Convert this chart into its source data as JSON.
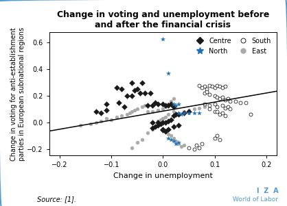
{
  "title": "Change in voting and unemployment before\nand after the financial crisis",
  "xlabel": "Change in unemployment",
  "ylabel": "Change in voting for anti-establishment\nparties in European subnational regions",
  "xlim": [
    -0.22,
    0.22
  ],
  "ylim": [
    -0.25,
    0.68
  ],
  "xticks": [
    -0.2,
    -0.1,
    0.0,
    0.1,
    0.2
  ],
  "yticks": [
    -0.2,
    0.0,
    0.2,
    0.4,
    0.6
  ],
  "source_text": "Source: [1].",
  "iza_text": "I  Z  A",
  "wol_text": "World of Labor",
  "centre_color": "#1a1a1a",
  "north_color": "#1f6eb5",
  "east_color": "#aaaaaa",
  "border_color": "#5599cc",
  "trend_line": [
    -0.22,
    -0.065,
    0.22,
    0.235
  ],
  "centre_points": [
    [
      -0.13,
      0.08
    ],
    [
      -0.12,
      0.07
    ],
    [
      -0.11,
      0.09
    ],
    [
      -0.11,
      0.14
    ],
    [
      -0.09,
      0.26
    ],
    [
      -0.08,
      0.25
    ],
    [
      -0.085,
      0.15
    ],
    [
      -0.075,
      0.12
    ],
    [
      -0.07,
      0.2
    ],
    [
      -0.06,
      0.2
    ],
    [
      -0.055,
      0.24
    ],
    [
      -0.06,
      0.3
    ],
    [
      -0.05,
      0.25
    ],
    [
      -0.045,
      0.22
    ],
    [
      -0.04,
      0.3
    ],
    [
      -0.035,
      0.22
    ],
    [
      -0.03,
      0.13
    ],
    [
      -0.025,
      0.22
    ],
    [
      -0.02,
      0.13
    ],
    [
      -0.015,
      0.15
    ],
    [
      -0.01,
      0.14
    ],
    [
      0.0,
      0.14
    ],
    [
      0.005,
      0.13
    ],
    [
      0.01,
      0.13
    ],
    [
      0.015,
      0.14
    ],
    [
      0.02,
      0.12
    ],
    [
      0.025,
      0.06
    ],
    [
      0.02,
      0.05
    ],
    [
      0.015,
      0.02
    ],
    [
      0.01,
      0.01
    ],
    [
      0.005,
      0.0
    ],
    [
      0.0,
      0.0
    ],
    [
      -0.005,
      -0.01
    ],
    [
      -0.01,
      -0.02
    ],
    [
      -0.015,
      -0.03
    ],
    [
      -0.02,
      -0.04
    ],
    [
      -0.02,
      0.0
    ],
    [
      -0.01,
      0.0
    ],
    [
      0.0,
      -0.05
    ],
    [
      0.0,
      -0.06
    ],
    [
      0.005,
      -0.07
    ],
    [
      0.01,
      -0.05
    ],
    [
      0.02,
      -0.03
    ],
    [
      0.03,
      -0.02
    ],
    [
      0.03,
      0.06
    ],
    [
      0.04,
      0.07
    ],
    [
      0.05,
      0.08
    ]
  ],
  "north_points": [
    [
      0.0,
      0.63
    ],
    [
      0.01,
      0.37
    ],
    [
      0.02,
      0.14
    ],
    [
      0.025,
      0.13
    ],
    [
      0.03,
      0.14
    ],
    [
      0.03,
      0.07
    ],
    [
      0.035,
      0.06
    ],
    [
      0.04,
      0.07
    ],
    [
      0.05,
      0.07
    ],
    [
      0.06,
      0.07
    ],
    [
      0.07,
      0.07
    ],
    [
      0.01,
      -0.12
    ],
    [
      0.015,
      -0.13
    ],
    [
      0.02,
      -0.14
    ],
    [
      0.025,
      -0.16
    ],
    [
      0.03,
      -0.15
    ]
  ],
  "south_points": [
    [
      0.07,
      0.28
    ],
    [
      0.08,
      0.27
    ],
    [
      0.085,
      0.25
    ],
    [
      0.09,
      0.28
    ],
    [
      0.095,
      0.27
    ],
    [
      0.1,
      0.26
    ],
    [
      0.105,
      0.28
    ],
    [
      0.11,
      0.27
    ],
    [
      0.115,
      0.26
    ],
    [
      0.12,
      0.27
    ],
    [
      0.075,
      0.26
    ],
    [
      0.08,
      0.22
    ],
    [
      0.085,
      0.23
    ],
    [
      0.09,
      0.21
    ],
    [
      0.1,
      0.2
    ],
    [
      0.105,
      0.19
    ],
    [
      0.11,
      0.18
    ],
    [
      0.115,
      0.19
    ],
    [
      0.12,
      0.17
    ],
    [
      0.125,
      0.18
    ],
    [
      0.13,
      0.16
    ],
    [
      0.14,
      0.16
    ],
    [
      0.15,
      0.15
    ],
    [
      0.16,
      0.15
    ],
    [
      0.17,
      0.06
    ],
    [
      0.08,
      0.14
    ],
    [
      0.09,
      0.13
    ],
    [
      0.1,
      0.14
    ],
    [
      0.105,
      0.12
    ],
    [
      0.115,
      0.13
    ],
    [
      0.12,
      0.11
    ],
    [
      0.125,
      0.12
    ],
    [
      0.13,
      0.1
    ],
    [
      0.09,
      0.1
    ],
    [
      0.1,
      0.08
    ],
    [
      0.105,
      0.08
    ],
    [
      0.11,
      0.06
    ],
    [
      0.115,
      0.07
    ],
    [
      0.12,
      0.05
    ],
    [
      0.1,
      -0.12
    ],
    [
      0.105,
      -0.1
    ],
    [
      0.11,
      -0.13
    ],
    [
      0.05,
      -0.19
    ],
    [
      0.06,
      -0.2
    ],
    [
      0.07,
      -0.19
    ],
    [
      0.065,
      -0.17
    ],
    [
      0.075,
      -0.16
    ]
  ],
  "east_points": [
    [
      -0.16,
      -0.02
    ],
    [
      -0.14,
      -0.01
    ],
    [
      -0.13,
      0.0
    ],
    [
      -0.12,
      0.01
    ],
    [
      -0.11,
      0.03
    ],
    [
      -0.1,
      0.02
    ],
    [
      -0.09,
      0.04
    ],
    [
      -0.08,
      0.05
    ],
    [
      -0.07,
      0.06
    ],
    [
      -0.065,
      0.07
    ],
    [
      -0.06,
      0.08
    ],
    [
      -0.055,
      0.09
    ],
    [
      -0.05,
      0.1
    ],
    [
      -0.04,
      0.12
    ],
    [
      -0.035,
      0.13
    ],
    [
      -0.03,
      0.08
    ],
    [
      -0.02,
      0.08
    ],
    [
      -0.01,
      0.09
    ],
    [
      0.0,
      0.1
    ],
    [
      0.005,
      0.12
    ],
    [
      0.01,
      0.14
    ],
    [
      0.015,
      0.16
    ],
    [
      0.02,
      0.18
    ],
    [
      0.02,
      0.08
    ],
    [
      0.01,
      0.06
    ],
    [
      0.005,
      0.04
    ],
    [
      0.0,
      0.03
    ],
    [
      -0.005,
      0.02
    ],
    [
      -0.01,
      0.01
    ],
    [
      -0.02,
      -0.05
    ],
    [
      -0.03,
      -0.08
    ],
    [
      -0.04,
      -0.13
    ],
    [
      -0.05,
      -0.15
    ],
    [
      -0.06,
      -0.19
    ],
    [
      0.005,
      -0.07
    ],
    [
      0.01,
      -0.09
    ],
    [
      0.015,
      -0.1
    ],
    [
      0.02,
      -0.12
    ],
    [
      0.025,
      -0.14
    ],
    [
      0.03,
      -0.16
    ],
    [
      0.035,
      -0.18
    ],
    [
      0.04,
      -0.17
    ],
    [
      0.03,
      0.06
    ],
    [
      0.04,
      0.08
    ],
    [
      0.05,
      0.09
    ],
    [
      0.06,
      0.1
    ],
    [
      0.07,
      0.11
    ],
    [
      0.08,
      0.12
    ]
  ]
}
